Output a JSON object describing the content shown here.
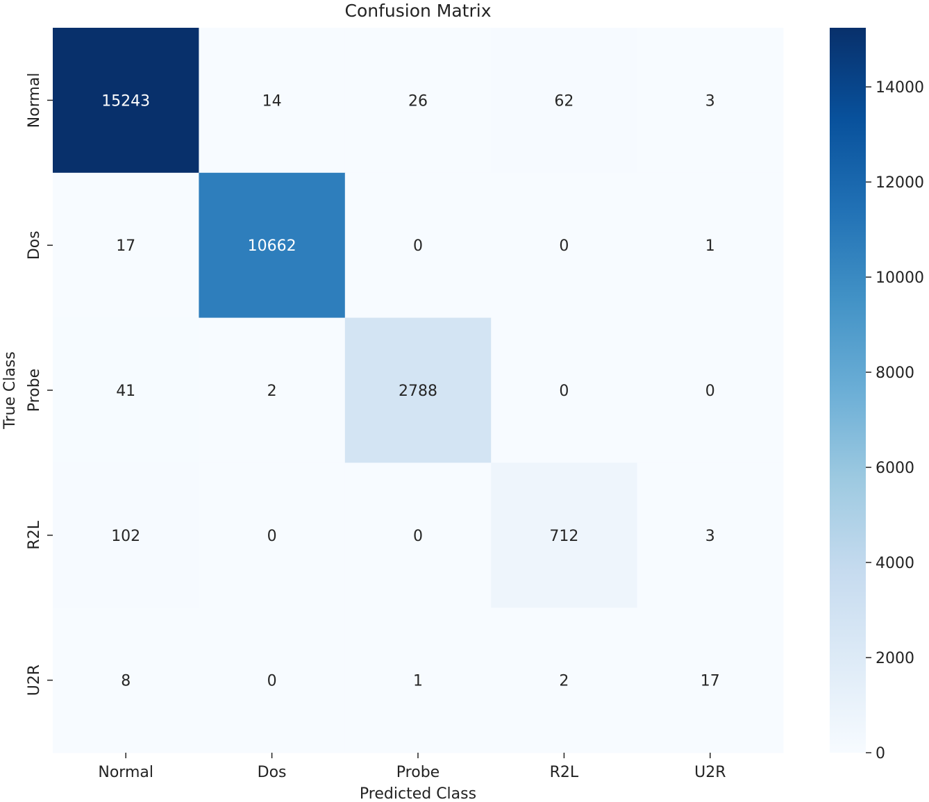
{
  "chart_data": {
    "type": "heatmap",
    "title": "Confusion Matrix",
    "xlabel": "Predicted Class",
    "ylabel": "True Class",
    "x_categories": [
      "Normal",
      "Dos",
      "Probe",
      "R2L",
      "U2R"
    ],
    "y_categories": [
      "Normal",
      "Dos",
      "Probe",
      "R2L",
      "U2R"
    ],
    "matrix": [
      [
        15243,
        14,
        26,
        62,
        3
      ],
      [
        17,
        10662,
        0,
        0,
        1
      ],
      [
        41,
        2,
        2788,
        0,
        0
      ],
      [
        102,
        0,
        0,
        712,
        3
      ],
      [
        8,
        0,
        1,
        2,
        17
      ]
    ],
    "colormap": "Blues",
    "color_range": [
      0,
      15243
    ],
    "colorbar_ticks": [
      0,
      2000,
      4000,
      6000,
      8000,
      10000,
      12000,
      14000
    ]
  }
}
